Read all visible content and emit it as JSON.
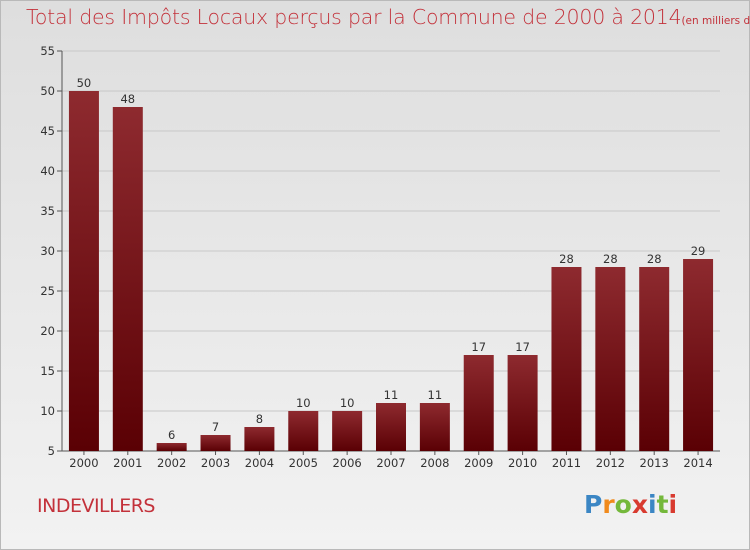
{
  "title": "Total des Impôts Locaux perçus par la Commune de 2000 à 2014",
  "subtitle": "(en milliers d'€)",
  "commune": "INDEVILLERS",
  "logo": [
    "P",
    "r",
    "o",
    "x",
    "i",
    "t",
    "i"
  ],
  "colors": {
    "bar": "#7b0f14",
    "title": "#c3313a"
  },
  "chart_data": {
    "type": "bar",
    "categories": [
      "2000",
      "2001",
      "2002",
      "2003",
      "2004",
      "2005",
      "2006",
      "2007",
      "2008",
      "2009",
      "2010",
      "2011",
      "2012",
      "2013",
      "2014"
    ],
    "values": [
      50,
      48,
      6,
      7,
      8,
      10,
      10,
      11,
      11,
      17,
      17,
      28,
      28,
      28,
      29
    ],
    "title": "Total des Impôts Locaux perçus par la Commune de 2000 à 2014",
    "ylim": [
      5,
      55
    ],
    "yticks": [
      5,
      10,
      15,
      20,
      25,
      30,
      35,
      40,
      45,
      50,
      55
    ],
    "grid": true,
    "data_labels": true
  }
}
